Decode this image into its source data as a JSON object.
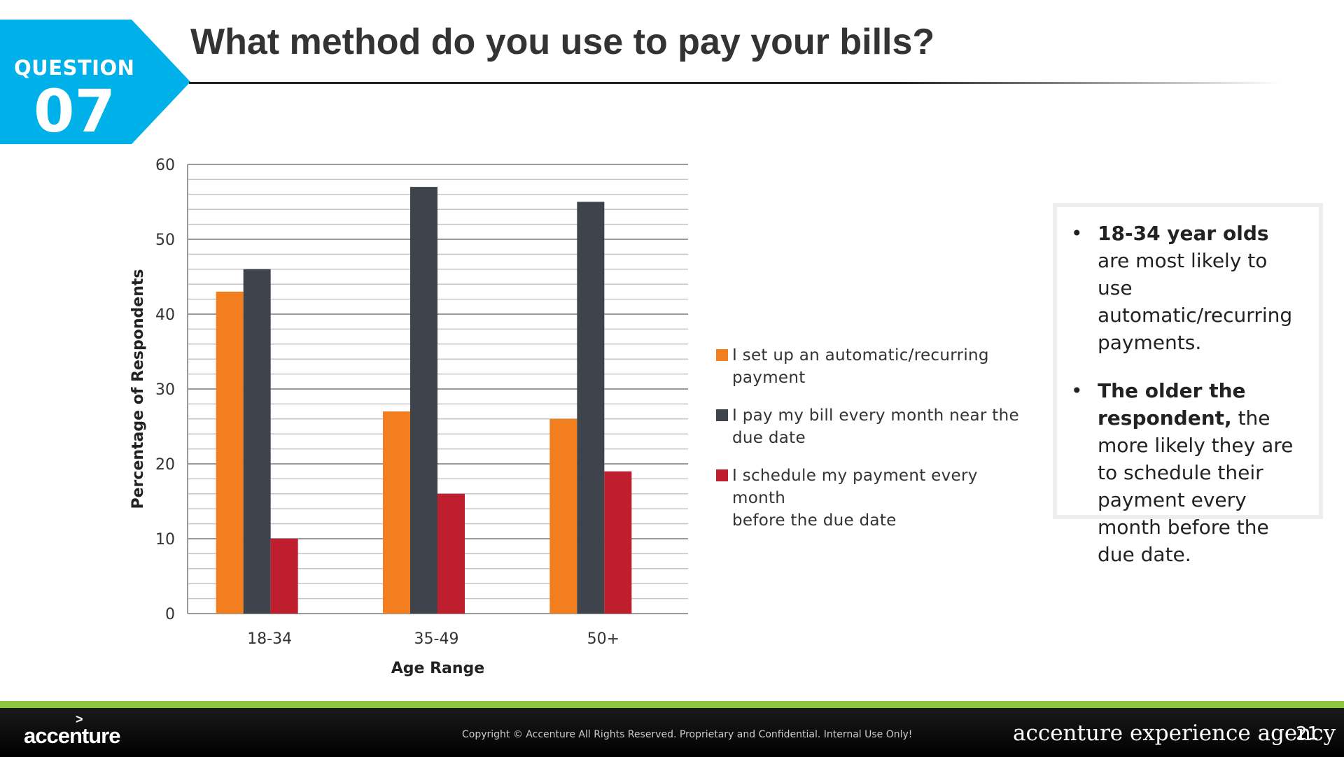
{
  "badge": {
    "label": "QUESTION",
    "number": "07",
    "color": "#00b0e8"
  },
  "title": "What method do you use to pay your bills?",
  "chart_data": {
    "type": "bar",
    "title": "",
    "xlabel": "Age Range",
    "ylabel": "Percentage of Respondents",
    "categories": [
      "18-34",
      "35-49",
      "50+"
    ],
    "ylim": [
      0,
      60
    ],
    "yticks": [
      0,
      10,
      20,
      30,
      40,
      50,
      60
    ],
    "grid": true,
    "legend_position": "right",
    "series": [
      {
        "name": "I set up an automatic/recurring payment",
        "values": [
          43,
          27,
          26
        ],
        "color": "#f37e20"
      },
      {
        "name": "I pay my bill every month near the due date",
        "values": [
          46,
          57,
          55
        ],
        "color": "#3f444c"
      },
      {
        "name": "I schedule my payment every month before the due date",
        "values": [
          10,
          16,
          19
        ],
        "color": "#be1e2d"
      }
    ]
  },
  "legend": {
    "items": [
      {
        "line1": "I set up an automatic/recurring",
        "line2": "payment"
      },
      {
        "line1": "I pay my bill every month near the",
        "line2": "due date"
      },
      {
        "line1": "I schedule my payment every month",
        "line2": "before the due date"
      }
    ]
  },
  "insights": {
    "bullet": "•",
    "items": [
      {
        "bold": "18-34 year olds",
        "text": " are most likely to use automatic/recurring payments."
      },
      {
        "bold": "The older the respondent,",
        "text": " the more likely they are to schedule their payment every month before the due date."
      }
    ]
  },
  "footer": {
    "logo": "accenture",
    "logo_mark": ">",
    "copyright": "Copyright © Accenture All Rights Reserved. Proprietary and Confidential. Internal Use Only!",
    "agency": "accenture experience agency",
    "page": "21"
  }
}
